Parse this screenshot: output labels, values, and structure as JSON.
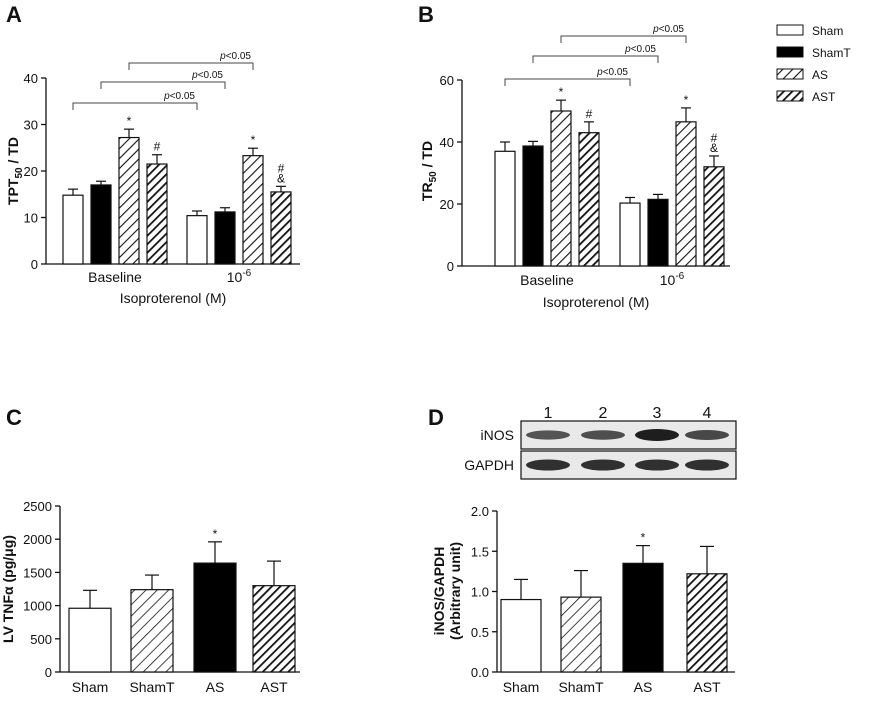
{
  "colors": {
    "axis": "#111111",
    "sham": "#ffffff",
    "shamT": "#000000",
    "hatch": "#111111",
    "blot_bg": "#e9e9e9",
    "band": "#3a3a3a"
  },
  "chart_data": [
    {
      "panel": "A",
      "type": "bar",
      "ylabel_main": "TPT",
      "ylabel_sub": "50",
      "ylabel_tail": " / TD",
      "xlabel": "Isoproterenol (M)",
      "categories": [
        "Baseline",
        "10"
      ],
      "category_sup": [
        "",
        "-6"
      ],
      "ylim": [
        0,
        40
      ],
      "yticks": [
        0,
        10,
        20,
        30,
        40
      ],
      "series": [
        {
          "name": "Sham",
          "pattern": "open",
          "values": [
            14.8,
            10.4
          ],
          "errors": [
            1.3,
            1.0
          ]
        },
        {
          "name": "ShamT",
          "pattern": "solid",
          "values": [
            17.0,
            11.2
          ],
          "errors": [
            0.8,
            0.9
          ]
        },
        {
          "name": "AS",
          "pattern": "hatch",
          "values": [
            27.2,
            23.3
          ],
          "errors": [
            1.8,
            1.6
          ]
        },
        {
          "name": "AST",
          "pattern": "hatch-dense",
          "values": [
            21.5,
            15.5
          ],
          "errors": [
            2.0,
            1.2
          ]
        }
      ],
      "annotations": [
        {
          "category": 0,
          "series": 2,
          "text": "*"
        },
        {
          "category": 0,
          "series": 3,
          "text": "#"
        },
        {
          "category": 1,
          "series": 2,
          "text": "*"
        },
        {
          "category": 1,
          "series": 3,
          "text": "#"
        },
        {
          "category": 1,
          "series": 3,
          "text": "&"
        }
      ],
      "brackets": [
        {
          "from": {
            "category": 0,
            "series": 0
          },
          "to": {
            "category": 1,
            "series": 0
          },
          "level": 0,
          "text": "<0.05"
        },
        {
          "from": {
            "category": 0,
            "series": 1
          },
          "to": {
            "category": 1,
            "series": 1
          },
          "level": 1,
          "text": "<0.05"
        },
        {
          "from": {
            "category": 0,
            "series": 2
          },
          "to": {
            "category": 1,
            "series": 2
          },
          "level": 2,
          "text": "<0.05"
        }
      ],
      "bracket_prefix": "p",
      "grid": false
    },
    {
      "panel": "B",
      "type": "bar",
      "ylabel_main": "TR",
      "ylabel_sub": "50",
      "ylabel_tail": " / TD",
      "xlabel": "Isoproterenol (M)",
      "categories": [
        "Baseline",
        "10"
      ],
      "category_sup": [
        "",
        "-6"
      ],
      "ylim": [
        0,
        60
      ],
      "yticks": [
        0,
        20,
        40,
        60
      ],
      "series": [
        {
          "name": "Sham",
          "pattern": "open",
          "values": [
            37.0,
            20.3
          ],
          "errors": [
            3.0,
            1.8
          ]
        },
        {
          "name": "ShamT",
          "pattern": "solid",
          "values": [
            38.7,
            21.5
          ],
          "errors": [
            1.5,
            1.6
          ]
        },
        {
          "name": "AS",
          "pattern": "hatch",
          "values": [
            50.0,
            46.5
          ],
          "errors": [
            3.5,
            4.5
          ]
        },
        {
          "name": "AST",
          "pattern": "hatch-dense",
          "values": [
            43.0,
            32.0
          ],
          "errors": [
            3.5,
            3.5
          ]
        }
      ],
      "annotations": [
        {
          "category": 0,
          "series": 2,
          "text": "*"
        },
        {
          "category": 0,
          "series": 3,
          "text": "#"
        },
        {
          "category": 1,
          "series": 2,
          "text": "*"
        },
        {
          "category": 1,
          "series": 3,
          "text": "#"
        },
        {
          "category": 1,
          "series": 3,
          "text": "&"
        }
      ],
      "brackets": [
        {
          "from": {
            "category": 0,
            "series": 0
          },
          "to": {
            "category": 1,
            "series": 0
          },
          "level": 0,
          "text": "<0.05"
        },
        {
          "from": {
            "category": 0,
            "series": 1
          },
          "to": {
            "category": 1,
            "series": 1
          },
          "level": 1,
          "text": "<0.05"
        },
        {
          "from": {
            "category": 0,
            "series": 2
          },
          "to": {
            "category": 1,
            "series": 2
          },
          "level": 2,
          "text": "<0.05"
        }
      ],
      "bracket_prefix": "p",
      "grid": false
    },
    {
      "panel": "C",
      "type": "bar",
      "ylabel": "LV TNFα (pg/μg)",
      "categories": [
        "Sham",
        "ShamT",
        "AS",
        "AST"
      ],
      "patterns": [
        "open",
        "hatch-wide",
        "solid",
        "hatch-dense"
      ],
      "values": [
        960,
        1240,
        1640,
        1300
      ],
      "errors": [
        270,
        220,
        320,
        370
      ],
      "ylim": [
        0,
        2500
      ],
      "yticks": [
        0,
        500,
        1000,
        1500,
        2000,
        2500
      ],
      "annotations": [
        {
          "category": 2,
          "text": "*"
        }
      ],
      "grid": false
    },
    {
      "panel": "D",
      "type": "bar",
      "ylabel_line1": "iNOS/GAPDH",
      "ylabel_line2": "(Arbitrary unit)",
      "categories": [
        "Sham",
        "ShamT",
        "AS",
        "AST"
      ],
      "patterns": [
        "open",
        "hatch-wide",
        "solid",
        "hatch-dense"
      ],
      "values": [
        0.9,
        0.93,
        1.35,
        1.22
      ],
      "errors": [
        0.25,
        0.33,
        0.22,
        0.34
      ],
      "ylim": [
        0,
        2.0
      ],
      "yticks": [
        "0.0",
        "0.5",
        "1.0",
        "1.5",
        "2.0"
      ],
      "annotations": [
        {
          "category": 2,
          "text": "*"
        }
      ],
      "grid": false
    }
  ],
  "legend": {
    "placement": "top-right",
    "entries": [
      {
        "label": "Sham",
        "pattern": "open"
      },
      {
        "label": "ShamT",
        "pattern": "solid"
      },
      {
        "label": "AS",
        "pattern": "hatch"
      },
      {
        "label": "AST",
        "pattern": "hatch-dense"
      }
    ]
  },
  "blot": {
    "lanes": [
      "1",
      "2",
      "3",
      "4"
    ],
    "rows": [
      {
        "label": "iNOS",
        "intensity": [
          0.55,
          0.6,
          1.0,
          0.65
        ]
      },
      {
        "label": "GAPDH",
        "intensity": [
          0.85,
          0.85,
          0.85,
          0.85
        ]
      }
    ]
  },
  "panel_letters": [
    "A",
    "B",
    "C",
    "D"
  ]
}
